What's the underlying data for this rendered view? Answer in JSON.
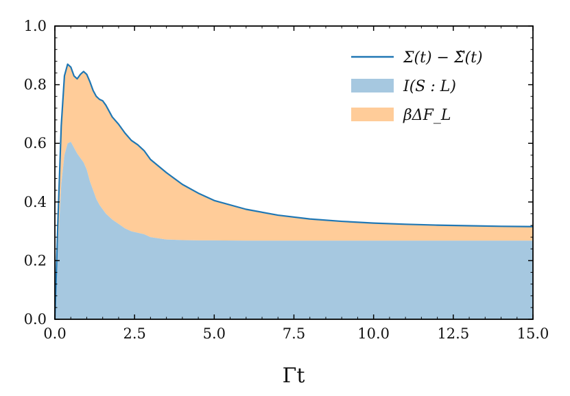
{
  "chart_data": {
    "type": "area",
    "xlabel": "Γt",
    "ylabel": "",
    "xlim": [
      0,
      15
    ],
    "ylim": [
      0,
      1
    ],
    "xticks": [
      "0.0",
      "2.5",
      "5.0",
      "7.5",
      "10.0",
      "12.5",
      "15.0"
    ],
    "yticks": [
      "0.0",
      "0.2",
      "0.4",
      "0.6",
      "0.8",
      "1.0"
    ],
    "grid": false,
    "legend_position": "top-right",
    "series": [
      {
        "name": "Σ(t) − Σ̃(t)",
        "kind": "line",
        "color": "#1f77b4",
        "x": [
          0,
          0.1,
          0.2,
          0.3,
          0.4,
          0.5,
          0.6,
          0.7,
          0.8,
          0.9,
          1.0,
          1.1,
          1.2,
          1.3,
          1.4,
          1.5,
          1.6,
          1.8,
          2.0,
          2.2,
          2.4,
          2.6,
          2.8,
          3.0,
          3.5,
          4.0,
          4.5,
          5.0,
          6.0,
          7.0,
          8.0,
          9.0,
          10.0,
          11.0,
          12.0,
          13.0,
          14.0,
          15.0
        ],
        "values": [
          0.0,
          0.35,
          0.66,
          0.83,
          0.87,
          0.86,
          0.83,
          0.82,
          0.835,
          0.845,
          0.835,
          0.81,
          0.78,
          0.76,
          0.75,
          0.745,
          0.73,
          0.69,
          0.665,
          0.635,
          0.61,
          0.595,
          0.575,
          0.545,
          0.5,
          0.46,
          0.43,
          0.405,
          0.375,
          0.355,
          0.342,
          0.334,
          0.328,
          0.324,
          0.321,
          0.319,
          0.317,
          0.316
        ]
      },
      {
        "name": "I(S : L)",
        "kind": "area",
        "color": "#a6c8e0",
        "x": [
          0,
          0.1,
          0.2,
          0.3,
          0.4,
          0.5,
          0.6,
          0.7,
          0.8,
          0.9,
          1.0,
          1.1,
          1.2,
          1.3,
          1.4,
          1.5,
          1.6,
          1.8,
          2.0,
          2.2,
          2.4,
          2.6,
          2.8,
          3.0,
          3.5,
          4.0,
          4.5,
          5.0,
          6.0,
          7.0,
          8.0,
          9.0,
          10.0,
          11.0,
          12.0,
          13.0,
          14.0,
          15.0
        ],
        "values": [
          0.0,
          0.25,
          0.46,
          0.56,
          0.6,
          0.605,
          0.585,
          0.565,
          0.55,
          0.535,
          0.51,
          0.47,
          0.44,
          0.41,
          0.39,
          0.375,
          0.36,
          0.34,
          0.325,
          0.31,
          0.3,
          0.295,
          0.29,
          0.28,
          0.272,
          0.27,
          0.269,
          0.269,
          0.268,
          0.268,
          0.268,
          0.268,
          0.268,
          0.268,
          0.268,
          0.268,
          0.268,
          0.268
        ]
      },
      {
        "name": "βΔF_L",
        "kind": "area",
        "color": "#ffcc99"
      }
    ]
  }
}
